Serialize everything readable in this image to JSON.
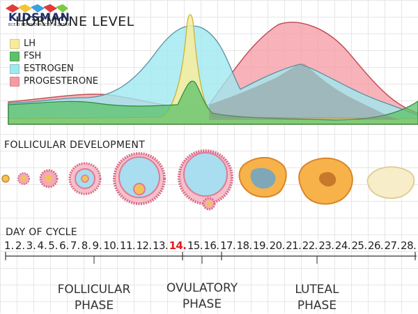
{
  "logo": {
    "name": "KIDSMAN",
    "tagline": "ВСЕ О БЕРЕМЕННОСТИ И ДЕТЯХ"
  },
  "hormone_title": "HORMONE LEVEL",
  "legend": [
    {
      "label": "LH",
      "color": "#f8ec9c"
    },
    {
      "label": "FSH",
      "color": "#5cc16a"
    },
    {
      "label": "ESTROGEN",
      "color": "#9fe8f0"
    },
    {
      "label": "PROGESTERONE",
      "color": "#f59aa3"
    }
  ],
  "follicular_development_label": "FOLLICULAR DEVELOPMENT",
  "day_of_cycle_label": "DAY OF CYCLE",
  "days": [
    "1.",
    "2.",
    "3.",
    "4.",
    "5.",
    "6.",
    "7.",
    "8.",
    "9.",
    "10.",
    "11.",
    "12.",
    "13.",
    "14.",
    "15.",
    "16.",
    "17.",
    "18.",
    "19.",
    "20.",
    "21.",
    "22.",
    "23.",
    "24.",
    "25.",
    "26.",
    "27.",
    "28."
  ],
  "highlight_day": "14.",
  "phases": [
    {
      "line1": "FOLLICULAR",
      "line2": "PHASE"
    },
    {
      "line1": "OVULATORY",
      "line2": "PHASE"
    },
    {
      "line1": "LUTEAL",
      "line2": "PHASE"
    }
  ],
  "colors": {
    "highlight": "#e31b23"
  }
}
